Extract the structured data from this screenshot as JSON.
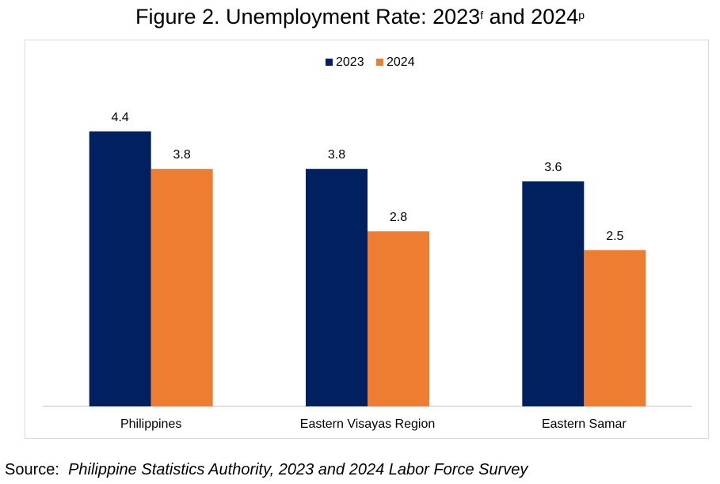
{
  "title": {
    "text": "Figure 2. Unemployment Rate: 2023",
    "sup1": "f",
    "mid": " and 2024",
    "sup2": "p"
  },
  "source": {
    "label": "Source:",
    "text": "Philippine Statistics Authority, 2023 and 2024 Labor Force Survey"
  },
  "colors": {
    "series_2023": "#002060",
    "series_2024": "#ED7D31",
    "axis": "#bfbfbf"
  },
  "chart_data": {
    "type": "bar",
    "title": "Figure 2. Unemployment Rate: 2023f and 2024p",
    "categories": [
      "Philippines",
      "Eastern Visayas Region",
      "Eastern Samar"
    ],
    "series": [
      {
        "name": "2023",
        "values": [
          4.4,
          3.8,
          3.6
        ],
        "labels": [
          "4.4",
          "3.8",
          "3.6"
        ],
        "color": "#002060"
      },
      {
        "name": "2024",
        "values": [
          3.8,
          2.8,
          2.5
        ],
        "labels": [
          "3.8",
          "2.8",
          "2.5"
        ],
        "color": "#ED7D31"
      }
    ],
    "xlabel": "",
    "ylabel": "",
    "ylim": [
      0,
      5
    ],
    "grid": false,
    "legend": "top-center",
    "data_labels": true
  }
}
